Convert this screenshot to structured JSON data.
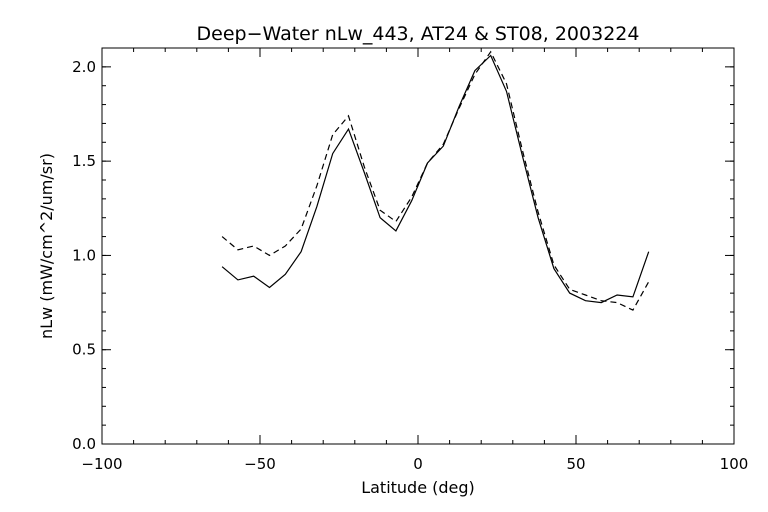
{
  "chart_data": {
    "type": "line",
    "title": "Deep−Water nLw_443, AT24 & ST08, 2003224",
    "xlabel": "Latitude (deg)",
    "ylabel": "nLw (mW/cm^2/um/sr)",
    "xlim": [
      -100,
      100
    ],
    "ylim": [
      0.0,
      2.1
    ],
    "xticks": [
      -100,
      -50,
      0,
      50,
      100
    ],
    "xtick_labels": [
      "−100",
      "−50",
      "0",
      "50",
      "100"
    ],
    "yticks": [
      0.0,
      0.5,
      1.0,
      1.5,
      2.0
    ],
    "ytick_labels": [
      "0.0",
      "0.5",
      "1.0",
      "1.5",
      "2.0"
    ],
    "grid": false,
    "series": [
      {
        "style": "solid",
        "x": [
          -62,
          -57,
          -52,
          -47,
          -42,
          -37,
          -32,
          -27,
          -22,
          -17,
          -12,
          -7,
          -2,
          3,
          8,
          13,
          18,
          23,
          28,
          33,
          38,
          43,
          48,
          53,
          58,
          63,
          68,
          73
        ],
        "y": [
          0.94,
          0.87,
          0.89,
          0.83,
          0.9,
          1.02,
          1.26,
          1.54,
          1.67,
          1.44,
          1.2,
          1.13,
          1.29,
          1.49,
          1.58,
          1.79,
          1.98,
          2.06,
          1.87,
          1.53,
          1.2,
          0.93,
          0.8,
          0.76,
          0.75,
          0.79,
          0.78,
          1.02
        ]
      },
      {
        "style": "dashed",
        "x": [
          -62,
          -57,
          -52,
          -47,
          -42,
          -37,
          -32,
          -27,
          -22,
          -17,
          -12,
          -7,
          -2,
          3,
          8,
          13,
          18,
          23,
          28,
          33,
          38,
          43,
          48,
          53,
          58,
          63,
          68,
          73
        ],
        "y": [
          1.1,
          1.03,
          1.05,
          1.0,
          1.05,
          1.14,
          1.37,
          1.64,
          1.74,
          1.47,
          1.24,
          1.18,
          1.31,
          1.49,
          1.59,
          1.78,
          1.96,
          2.08,
          1.91,
          1.56,
          1.23,
          0.95,
          0.82,
          0.79,
          0.76,
          0.75,
          0.71,
          0.86
        ]
      }
    ]
  }
}
